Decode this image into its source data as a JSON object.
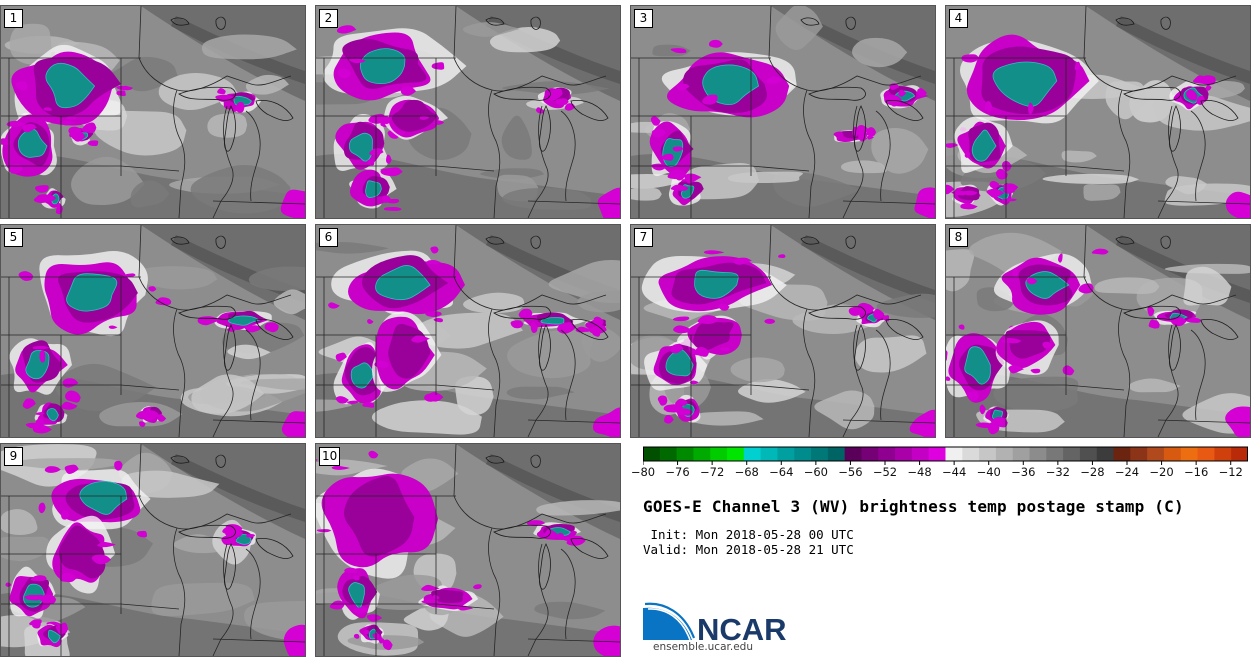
{
  "panels": [
    {
      "label": "1"
    },
    {
      "label": "2"
    },
    {
      "label": "3"
    },
    {
      "label": "4"
    },
    {
      "label": "5"
    },
    {
      "label": "6"
    },
    {
      "label": "7"
    },
    {
      "label": "8"
    },
    {
      "label": "9"
    },
    {
      "label": "10"
    }
  ],
  "colorbar": {
    "ticks": [
      "−80",
      "−76",
      "−72",
      "−68",
      "−64",
      "−60",
      "−56",
      "−52",
      "−48",
      "−44",
      "−40",
      "−36",
      "−32",
      "−28",
      "−24",
      "−20",
      "−16",
      "−12"
    ],
    "range": [
      -80,
      -10
    ],
    "colors": [
      "#005000",
      "#006a00",
      "#008a00",
      "#00aa00",
      "#00cc00",
      "#00e600",
      "#00d0d0",
      "#00b8b8",
      "#00a0a0",
      "#008c8c",
      "#007878",
      "#006464",
      "#5a005a",
      "#760076",
      "#900090",
      "#aa00aa",
      "#c400c4",
      "#de00de",
      "#f0f0f0",
      "#dadada",
      "#c6c6c6",
      "#b2b2b2",
      "#a0a0a0",
      "#8c8c8c",
      "#787878",
      "#646464",
      "#505050",
      "#3c3c3c",
      "#6a2410",
      "#8c3418",
      "#b04a1c",
      "#d85a10",
      "#ec6e10",
      "#e85a14",
      "#d0400c",
      "#b82a08"
    ]
  },
  "title": "GOES-E Channel 3 (WV) brightness temp postage stamp (C)",
  "init_text": " Init: Mon 2018-05-28 00 UTC",
  "valid_text": "Valid: Mon 2018-05-28 21 UTC",
  "logo": {
    "name": "NCAR",
    "url": "ensemble.ucar.edu"
  }
}
